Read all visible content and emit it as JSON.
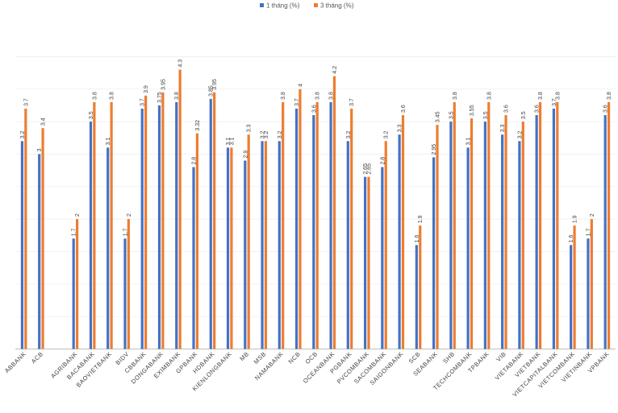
{
  "chart_data": {
    "type": "bar",
    "title": "",
    "xlabel": "",
    "ylabel": "",
    "ylim": [
      0,
      4.5
    ],
    "grid": true,
    "legend_position": "top-center",
    "categories": [
      "ABBANK",
      "ACB",
      "",
      "AGRIBANK",
      "BACABANK",
      "BAOVIETBANK",
      "BIDV",
      "CBBANK",
      "DONGABANK",
      "EXIMBANK",
      "GPBANK",
      "HDBANK",
      "KIENLONGBANK",
      "MB",
      "MSB",
      "NAMABANK",
      "NCB",
      "OCB",
      "OCEANBANK",
      "PGBANK",
      "PVCOMBANK",
      "SACOMBANK",
      "SAIGONBANK",
      "SCB",
      "SEABANK",
      "SHB",
      "TECHCOMBANK",
      "TPBANK",
      "VIB",
      "VIETABANK",
      "VIETBANK",
      "VIETCAPITALBANK",
      "VIETCOMBANK",
      "VIETINBANK",
      "VPBANK"
    ],
    "series": [
      {
        "name": "1 tháng (%)",
        "color": "#4472C4",
        "values": [
          3.2,
          3,
          null,
          1.7,
          3.5,
          3.1,
          1.7,
          3.7,
          3.75,
          3.8,
          2.8,
          3.85,
          3.1,
          2.9,
          3.2,
          3.2,
          3.7,
          3.6,
          3.8,
          3.2,
          2.65,
          2.8,
          3.3,
          1.6,
          2.95,
          3.5,
          3.1,
          3.5,
          3.3,
          3.2,
          3.6,
          3.7,
          1.6,
          1.7,
          3.6
        ],
        "labels": [
          "3.2",
          "3",
          "",
          "1.7",
          "3.5",
          "3.1",
          "1.7",
          "3.7",
          "3.75",
          "3.8",
          "2.8",
          "3.85",
          "3.1",
          "2.9",
          "3.2",
          "3.2",
          "3.7",
          "3.6",
          "3.8",
          "3.2",
          "2.65",
          "2.8",
          "3.3",
          "1.6",
          "2.95",
          "3.5",
          "3.1",
          "3.5",
          "3.3",
          "3.2",
          "3.6",
          "3.7",
          "1.6",
          "1.7",
          "3.6"
        ]
      },
      {
        "name": "3 tháng (%)",
        "color": "#ED7D31",
        "values": [
          3.7,
          3.4,
          null,
          2,
          3.8,
          3.8,
          2,
          3.9,
          3.95,
          4.3,
          3.32,
          3.95,
          3.1,
          3.3,
          3.2,
          3.8,
          4,
          3.8,
          4.2,
          3.7,
          2.65,
          3.2,
          3.6,
          1.9,
          3.45,
          3.8,
          3.55,
          3.8,
          3.6,
          3.5,
          3.8,
          3.8,
          1.9,
          2,
          3.8
        ],
        "labels": [
          "3.7",
          "3.4",
          "",
          "2",
          "3.8",
          "3.8",
          "2",
          "3.9",
          "3.95",
          "4.3",
          "3.32",
          "3.95",
          "3.1",
          "3.3",
          "3.2",
          "3.8",
          "4",
          "3.8",
          "4.2",
          "3.7",
          "2.65",
          "3.2",
          "3.6",
          "1.9",
          "3.45",
          "3.8",
          "3.55",
          "3.8",
          "3.6",
          "3.5",
          "3.8",
          "3.8",
          "1.9",
          "2",
          "3.8"
        ]
      }
    ]
  }
}
